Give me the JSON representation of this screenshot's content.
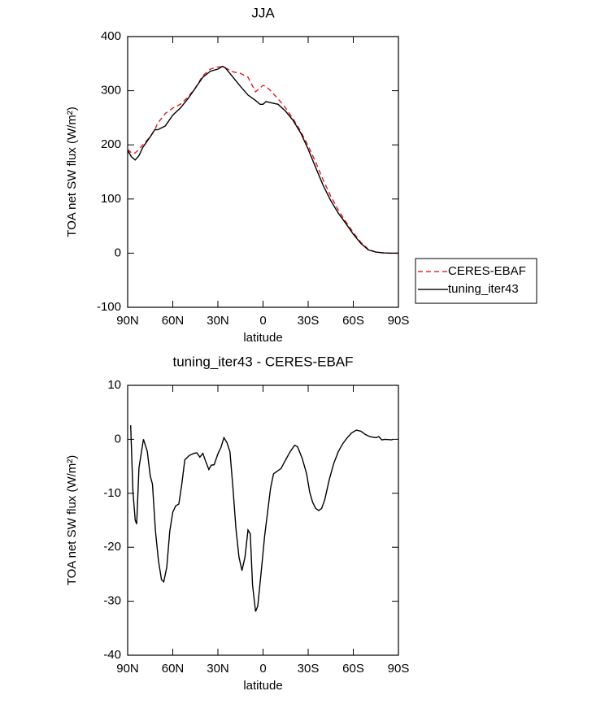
{
  "chart_data": [
    {
      "type": "line",
      "title": "JJA",
      "xlabel": "latitude",
      "ylabel": "TOA net SW flux (W/m²)",
      "x": [
        90,
        87.5,
        85,
        82.5,
        80,
        75,
        72,
        70,
        65,
        60,
        55,
        50,
        45,
        40,
        35,
        30,
        27,
        25,
        20,
        15,
        10,
        5,
        2,
        0,
        -2,
        -5,
        -10,
        -15,
        -20,
        -25,
        -30,
        -35,
        -40,
        -45,
        -50,
        -55,
        -60,
        -65,
        -70,
        -75,
        -80,
        -85,
        -90
      ],
      "series": [
        {
          "name": "CERES-EBAF",
          "color": "#e31a1c",
          "dashed": true,
          "values": [
            192,
            185,
            185,
            192,
            200,
            215,
            228,
            240,
            258,
            268,
            275,
            288,
            305,
            328,
            340,
            344,
            344,
            342,
            335,
            332,
            325,
            298,
            305,
            310,
            308,
            300,
            285,
            268,
            248,
            225,
            198,
            168,
            135,
            105,
            80,
            58,
            38,
            20,
            7,
            2,
            0.5,
            0,
            0
          ]
        },
        {
          "name": "tuning_iter43",
          "color": "#000000",
          "dashed": false,
          "values": [
            190,
            178,
            172,
            180,
            195,
            215,
            228,
            228,
            235,
            255,
            268,
            285,
            305,
            325,
            336,
            340,
            345,
            342,
            325,
            308,
            292,
            282,
            275,
            275,
            280,
            278,
            275,
            262,
            245,
            222,
            192,
            158,
            125,
            97,
            74,
            55,
            35,
            18,
            6,
            2,
            0.5,
            0,
            0
          ]
        }
      ],
      "xlim": [
        90,
        -90
      ],
      "xticks": [
        {
          "value": 90,
          "label": "90N"
        },
        {
          "value": 60,
          "label": "60N"
        },
        {
          "value": 30,
          "label": "30N"
        },
        0,
        {
          "value": -30,
          "label": "30S"
        },
        {
          "value": -60,
          "label": "60S"
        },
        {
          "value": -90,
          "label": "90S"
        }
      ],
      "ylim": [
        -100,
        400
      ],
      "yticks": [
        -100,
        0,
        100,
        200,
        300,
        400
      ],
      "legend": "right"
    },
    {
      "type": "line",
      "title": "tuning_iter43 - CERES-EBAF",
      "xlabel": "latitude",
      "ylabel": "TOA net SW flux (W/m²)",
      "x": [
        88,
        86.5,
        85,
        84,
        82.5,
        79.5,
        77,
        75,
        73.5,
        71.5,
        69.5,
        67.5,
        66,
        64,
        62,
        60,
        58,
        56,
        54,
        52,
        49,
        46,
        44,
        42,
        40,
        38,
        36,
        34.5,
        32.5,
        30,
        28,
        26,
        24,
        22,
        20,
        18,
        16,
        14,
        12,
        10,
        8.5,
        7,
        5,
        3.5,
        1,
        -1,
        -3,
        -5,
        -7,
        -9,
        -12,
        -15,
        -18,
        -21,
        -23,
        -26,
        -29,
        -31,
        -33,
        -35,
        -37,
        -39,
        -41,
        -44,
        -47,
        -50,
        -53,
        -56,
        -59,
        -62,
        -65,
        -68,
        -71,
        -75,
        -77,
        -79,
        -81,
        -86
      ],
      "series": [
        {
          "color": "#000000",
          "dashed": false,
          "values": [
            2.6,
            -9.7,
            -15,
            -15.7,
            -5.3,
            0,
            -2.2,
            -6.8,
            -8.3,
            -17,
            -22.5,
            -26,
            -26.4,
            -23.7,
            -17,
            -13.5,
            -12.3,
            -12,
            -8.3,
            -3.8,
            -3,
            -2.6,
            -2.5,
            -3.3,
            -2.6,
            -4.2,
            -5.6,
            -4.8,
            -4.7,
            -2.7,
            -1.5,
            0.3,
            -0.6,
            -2.3,
            -9,
            -16.6,
            -21.8,
            -24.3,
            -21.8,
            -16.8,
            -17.5,
            -27,
            -31.9,
            -30.9,
            -24,
            -18,
            -13.5,
            -9,
            -6.4,
            -6,
            -5.4,
            -3.8,
            -2.3,
            -1.1,
            -1.4,
            -3.5,
            -6.4,
            -9.8,
            -11.7,
            -12.8,
            -13.2,
            -12.8,
            -11.2,
            -7.5,
            -4.5,
            -2.3,
            -0.8,
            0.3,
            1.2,
            1.7,
            1.5,
            0.9,
            0.5,
            0.3,
            0.5,
            -0.1,
            0,
            -0.1
          ]
        }
      ],
      "xlim": [
        90,
        -90
      ],
      "xticks": [
        {
          "value": 90,
          "label": "90N"
        },
        {
          "value": 60,
          "label": "60N"
        },
        {
          "value": 30,
          "label": "30N"
        },
        0,
        {
          "value": -30,
          "label": "30S"
        },
        {
          "value": -60,
          "label": "60S"
        },
        {
          "value": -90,
          "label": "90S"
        }
      ],
      "ylim": [
        -40,
        10
      ],
      "yticks": [
        -40,
        -30,
        -20,
        -10,
        0,
        10
      ]
    }
  ]
}
